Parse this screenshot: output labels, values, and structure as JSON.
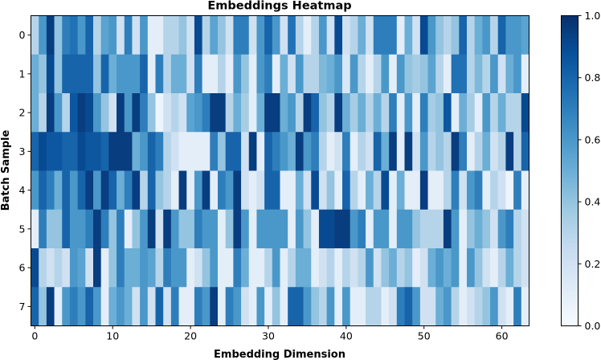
{
  "chart_data": {
    "type": "heatmap",
    "title": "Embeddings Heatmap",
    "xlabel": "Embedding Dimension",
    "ylabel": "Batch Sample",
    "x_ticks": [
      0,
      10,
      20,
      30,
      40,
      50,
      60
    ],
    "y_ticks": [
      0,
      1,
      2,
      3,
      4,
      5,
      6,
      7
    ],
    "colorbar": {
      "ticks": [
        0.0,
        0.2,
        0.4,
        0.6,
        0.8,
        1.0
      ],
      "tick_labels": [
        "0.0",
        "0.2",
        "0.4",
        "0.6",
        "0.8",
        "1.0"
      ],
      "range": [
        0,
        1
      ]
    },
    "colormap": "Blues",
    "colormap_low": "#f7fbff",
    "colormap_high": "#08306b",
    "n_rows": 8,
    "n_cols": 64,
    "values": [
      [
        0.3,
        0.6,
        0.95,
        0.4,
        0.7,
        0.75,
        0.6,
        0.8,
        0.3,
        0.55,
        0.6,
        0.2,
        0.7,
        0.2,
        0.6,
        0.1,
        0.1,
        0.3,
        0.3,
        0.4,
        0.2,
        0.9,
        0.3,
        0.55,
        0.4,
        0.2,
        0.7,
        0.7,
        0.2,
        0.6,
        0.8,
        0.6,
        0.2,
        0.75,
        0.3,
        0.1,
        0.3,
        0.6,
        0.2,
        0.9,
        0.2,
        0.3,
        0.5,
        0.2,
        0.7,
        0.7,
        0.7,
        0.1,
        0.5,
        0.2,
        0.9,
        0.6,
        0.4,
        0.3,
        0.4,
        0.8,
        0.3,
        0.5,
        0.6,
        0.3,
        0.8,
        0.6,
        0.6,
        0.55
      ],
      [
        0.5,
        0.4,
        0.9,
        0.4,
        0.8,
        0.8,
        0.8,
        0.8,
        0.4,
        0.8,
        0.5,
        0.6,
        0.6,
        0.6,
        0.8,
        0.1,
        0.7,
        0.3,
        0.5,
        0.5,
        0.2,
        0.7,
        0.1,
        0.1,
        0.3,
        0.1,
        0.6,
        0.4,
        0.1,
        0.6,
        0.7,
        0.1,
        0.5,
        0.2,
        0.6,
        0.3,
        0.3,
        0.45,
        0.5,
        0.6,
        0.15,
        0.6,
        0.3,
        0.1,
        0.3,
        0.6,
        0.1,
        0.6,
        0.4,
        0.35,
        0.4,
        0.55,
        0.3,
        0.1,
        0.75,
        0.75,
        0.3,
        0.45,
        0.3,
        0.6,
        0.2,
        0.5,
        0.6,
        0.1
      ],
      [
        0.5,
        0.3,
        0.95,
        0.6,
        0.3,
        0.85,
        0.95,
        0.9,
        0.6,
        0.4,
        0.2,
        0.95,
        0.6,
        0.95,
        0.7,
        0.4,
        0.05,
        0.2,
        0.3,
        0.2,
        0.55,
        0.6,
        0.7,
        0.95,
        0.95,
        0.3,
        0.5,
        0.35,
        0.1,
        0.5,
        0.95,
        0.95,
        0.5,
        0.6,
        0.3,
        0.95,
        0.8,
        0.4,
        0.3,
        0.95,
        0.5,
        0.35,
        0.5,
        0.3,
        0.5,
        0.3,
        0.7,
        0.1,
        0.6,
        0.1,
        0.7,
        0.35,
        0.4,
        0.85,
        0.1,
        0.5,
        0.35,
        0.1,
        0.6,
        0.3,
        0.5,
        0.3,
        0.3,
        0.9
      ],
      [
        0.8,
        0.9,
        0.85,
        0.85,
        0.8,
        0.8,
        0.9,
        0.85,
        0.85,
        0.8,
        0.95,
        0.95,
        0.95,
        0.5,
        0.6,
        0.8,
        0.7,
        0.3,
        0.2,
        0.1,
        0.1,
        0.1,
        0.1,
        0.7,
        0.4,
        0.8,
        0.8,
        0.2,
        0.95,
        0.1,
        0.8,
        0.7,
        0.6,
        0.5,
        0.95,
        0.6,
        0.7,
        0.3,
        0.1,
        0.2,
        0.7,
        0.1,
        0.3,
        0.2,
        0.8,
        0.5,
        0.95,
        0.1,
        0.95,
        0.2,
        0.6,
        0.3,
        0.4,
        0.3,
        0.95,
        0.7,
        0.1,
        0.3,
        0.5,
        0.2,
        0.3,
        0.95,
        0.3,
        0.8
      ],
      [
        0.6,
        0.8,
        0.7,
        0.5,
        0.8,
        0.6,
        0.8,
        0.95,
        0.6,
        0.95,
        0.8,
        0.5,
        0.7,
        0.95,
        0.3,
        0.8,
        0.4,
        0.3,
        0.1,
        0.95,
        0.1,
        0.6,
        0.95,
        0.1,
        0.7,
        0.6,
        0.95,
        0.2,
        0.1,
        0.2,
        0.8,
        0.8,
        0.1,
        0.1,
        0.5,
        0.2,
        0.9,
        0.2,
        0.4,
        0.1,
        0.8,
        0.3,
        0.1,
        0.5,
        0.3,
        0.9,
        0.1,
        0.5,
        0.1,
        0.1,
        0.95,
        0.1,
        0.1,
        0.3,
        0.7,
        0.2,
        0.6,
        0.7,
        0.1,
        0.3,
        0.2,
        0.05,
        0.7,
        0.1
      ],
      [
        0.1,
        0.7,
        0.4,
        0.4,
        0.8,
        0.6,
        0.6,
        0.7,
        0.95,
        0.7,
        0.4,
        0.7,
        0.1,
        0.4,
        0.6,
        0.95,
        0.2,
        0.95,
        0.6,
        0.4,
        0.4,
        0.7,
        0.6,
        0.6,
        0.1,
        0.4,
        0.95,
        0.6,
        0.1,
        0.6,
        0.6,
        0.6,
        0.6,
        0.1,
        0.6,
        0.4,
        0.1,
        0.9,
        0.9,
        0.95,
        0.95,
        0.6,
        0.7,
        0.1,
        0.6,
        0.6,
        0.1,
        0.6,
        0.6,
        0.4,
        0.3,
        0.3,
        0.3,
        0.95,
        0.6,
        0.1,
        0.4,
        0.5,
        0.4,
        0.2,
        0.6,
        0.7,
        0.3,
        0.2
      ],
      [
        0.9,
        0.3,
        0.2,
        0.3,
        0.2,
        0.6,
        0.55,
        0.2,
        0.95,
        0.1,
        0.4,
        0.7,
        0.5,
        0.5,
        0.6,
        0.55,
        0.3,
        0.7,
        0.6,
        0.6,
        0.1,
        0.2,
        0.4,
        0.6,
        0.1,
        0.1,
        0.7,
        0.5,
        0.1,
        0.1,
        0.3,
        0.6,
        0.1,
        0.3,
        0.5,
        0.5,
        0.1,
        0.2,
        0.3,
        0.1,
        0.3,
        0.2,
        0.3,
        0.6,
        0.2,
        0.4,
        0.5,
        0.3,
        0.4,
        0.1,
        0.2,
        0.5,
        0.6,
        0.5,
        0.6,
        0.1,
        0.6,
        0.4,
        0.2,
        0.1,
        0.3,
        0.5,
        0.3,
        0.2
      ],
      [
        0.8,
        0.4,
        0.95,
        0.1,
        0.6,
        0.7,
        0.6,
        0.8,
        0.6,
        0.1,
        0.5,
        0.6,
        0.5,
        0.2,
        0.6,
        0.2,
        0.8,
        0.2,
        0.7,
        0.1,
        0.1,
        0.7,
        0.6,
        0.95,
        0.1,
        0.7,
        0.6,
        0.2,
        0.1,
        0.6,
        0.1,
        0.4,
        0.1,
        0.8,
        0.8,
        0.6,
        0.4,
        0.3,
        0.6,
        0.1,
        0.6,
        0.1,
        0.1,
        0.3,
        0.3,
        0.1,
        0.2,
        0.7,
        0.8,
        0.6,
        0.2,
        0.2,
        0.5,
        0.6,
        0.3,
        0.1,
        0.2,
        0.3,
        0.4,
        0.6,
        0.2,
        0.1,
        0.7,
        0.1
      ]
    ]
  }
}
